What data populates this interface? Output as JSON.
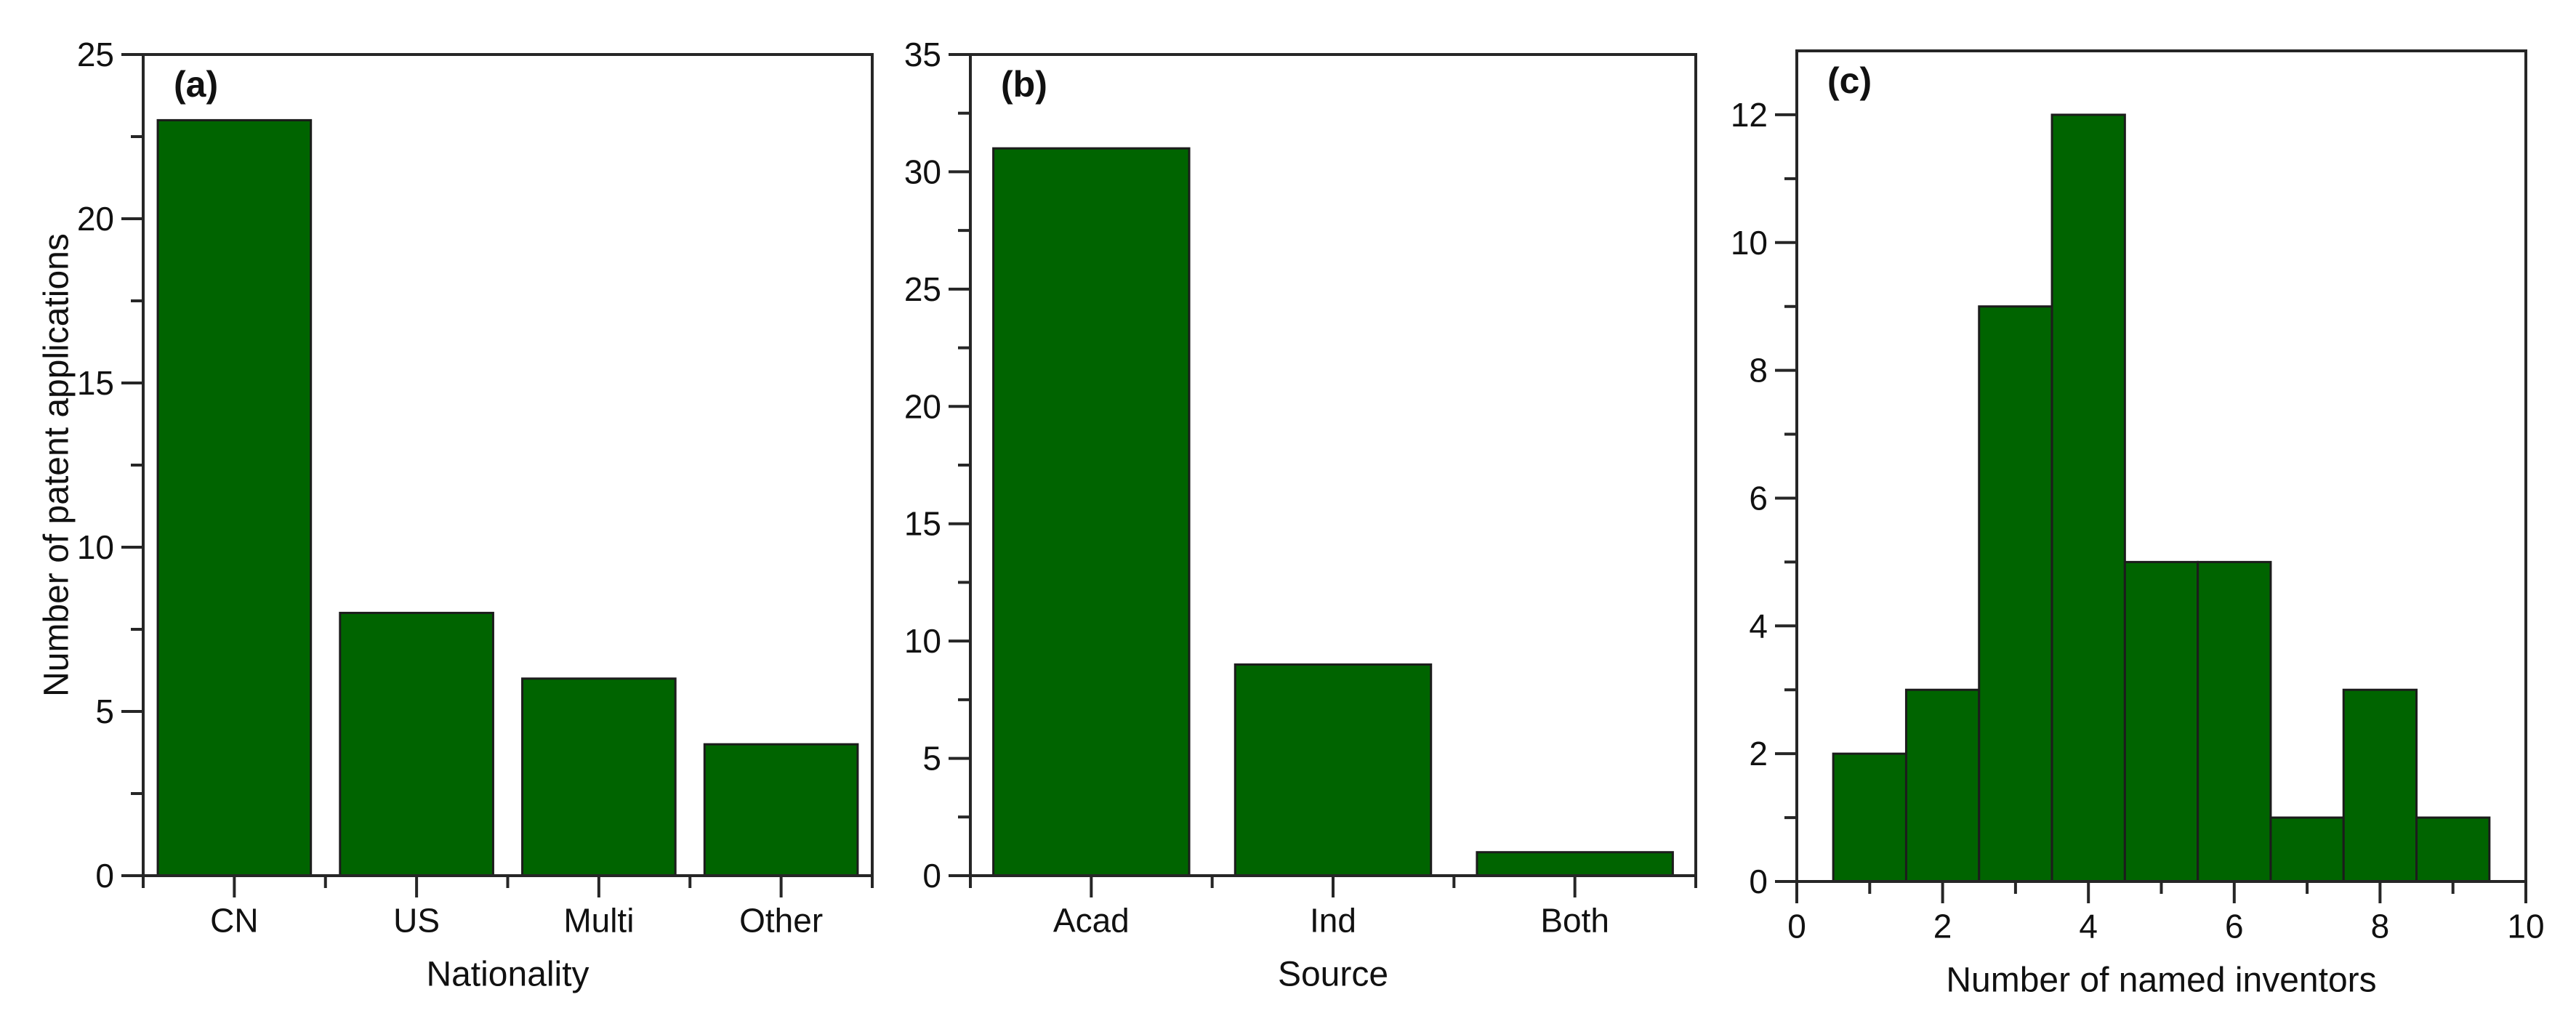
{
  "figure": {
    "background": "#ffffff",
    "panel_labels": [
      "(a)",
      "(b)",
      "(c)"
    ]
  },
  "style": {
    "bar_fill": "#006400",
    "bar_edge": "#1c1c1c",
    "axis_color": "#262626",
    "text_color": "#111111"
  },
  "chart_data": [
    {
      "id": "a",
      "type": "bar",
      "panel_label": "(a)",
      "categories": [
        "CN",
        "US",
        "Multi",
        "Other"
      ],
      "values": [
        23,
        8,
        6,
        4
      ],
      "xlabel": "Nationality",
      "ylabel": "Number of patent applications",
      "ylim": [
        0,
        25
      ],
      "yticks": [
        0,
        5,
        10,
        15,
        20,
        25
      ],
      "ytick_labels": [
        "0",
        "5",
        "10",
        "15",
        "20",
        "25"
      ],
      "ytick_minor": [
        2.5,
        7.5,
        12.5,
        17.5,
        22.5
      ],
      "bar_width_frac": 0.84,
      "grid": false,
      "legend": "none"
    },
    {
      "id": "b",
      "type": "bar",
      "panel_label": "(b)",
      "categories": [
        "Acad",
        "Ind",
        "Both"
      ],
      "values": [
        31,
        9,
        1
      ],
      "xlabel": "Source",
      "ylabel": "",
      "ylim": [
        0,
        35
      ],
      "yticks": [
        0,
        5,
        10,
        15,
        20,
        25,
        30,
        35
      ],
      "ytick_labels": [
        "0",
        "5",
        "10",
        "15",
        "20",
        "25",
        "30",
        "35"
      ],
      "ytick_minor": [
        2.5,
        7.5,
        12.5,
        17.5,
        22.5,
        27.5,
        32.5
      ],
      "bar_width_frac": 0.81,
      "grid": false,
      "legend": "none"
    },
    {
      "id": "c",
      "type": "histogram",
      "panel_label": "(c)",
      "bin_start": 0.5,
      "bin_width": 1,
      "bin_centers": [
        1,
        2,
        3,
        4,
        5,
        6,
        7,
        8,
        9
      ],
      "values": [
        2,
        3,
        9,
        12,
        5,
        5,
        1,
        3,
        1
      ],
      "xlabel": "Number of named inventors",
      "ylabel": "",
      "xlim": [
        0,
        10
      ],
      "xticks": [
        0,
        2,
        4,
        6,
        8,
        10
      ],
      "xtick_labels": [
        "0",
        "2",
        "4",
        "6",
        "8",
        "10"
      ],
      "xtick_minor": [
        1,
        3,
        5,
        7,
        9
      ],
      "ylim": [
        0,
        13
      ],
      "yticks": [
        0,
        2,
        4,
        6,
        8,
        10,
        12
      ],
      "ytick_labels": [
        "0",
        "2",
        "4",
        "6",
        "8",
        "10",
        "12"
      ],
      "ytick_minor": [
        1,
        3,
        5,
        7,
        9,
        11
      ],
      "grid": false,
      "legend": "none"
    }
  ]
}
